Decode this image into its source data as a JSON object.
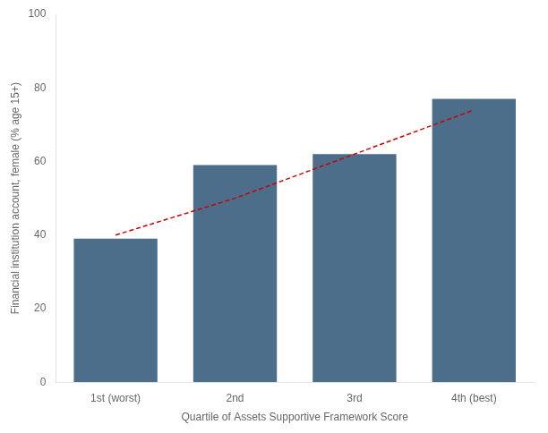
{
  "chart_data": {
    "type": "bar",
    "categories": [
      "1st (worst)",
      "2nd",
      "3rd",
      "4th (best)"
    ],
    "series": [
      {
        "type": "bar",
        "color": "#4d6e8a",
        "values": [
          39,
          59,
          62,
          77
        ]
      },
      {
        "type": "line",
        "color": "#cc0000",
        "line_style": "dashed",
        "values": [
          40,
          50,
          62,
          74
        ]
      }
    ],
    "xlabel": "Quartile of Assets Supportive Framework Score",
    "ylabel": "Financial institution account, female (% age 15+)",
    "ylim": [
      0,
      100
    ],
    "yticks": [
      0,
      20,
      40,
      60,
      80,
      100
    ],
    "grid": false
  }
}
